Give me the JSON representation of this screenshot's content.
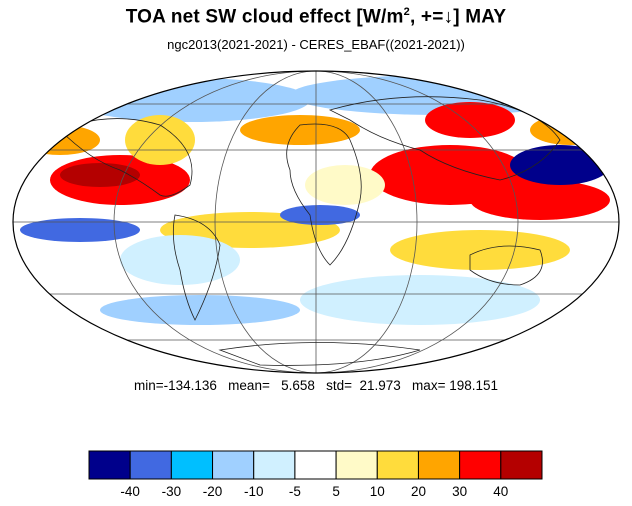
{
  "title": {
    "main": "TOA net SW cloud effect [W/m",
    "sup": "2",
    "rest": ", +=↓]  MAY"
  },
  "subtitle": "ngc2013(2021-2021) - CERES_EBAF((2021-2021))",
  "stats": {
    "text": "min=-134.136   mean=   5.658   std=  21.973   max= 198.151"
  },
  "colorbar": {
    "ticks": [
      "-40",
      "-30",
      "-20",
      "-10",
      "-5",
      "5",
      "10",
      "20",
      "30",
      "40"
    ],
    "colors": [
      "#00008b",
      "#4169e1",
      "#00bfff",
      "#a0d0ff",
      "#d0f0ff",
      "#ffffff",
      "#fffac8",
      "#ffdc3c",
      "#ffa500",
      "#ff0000",
      "#b40000"
    ]
  }
}
